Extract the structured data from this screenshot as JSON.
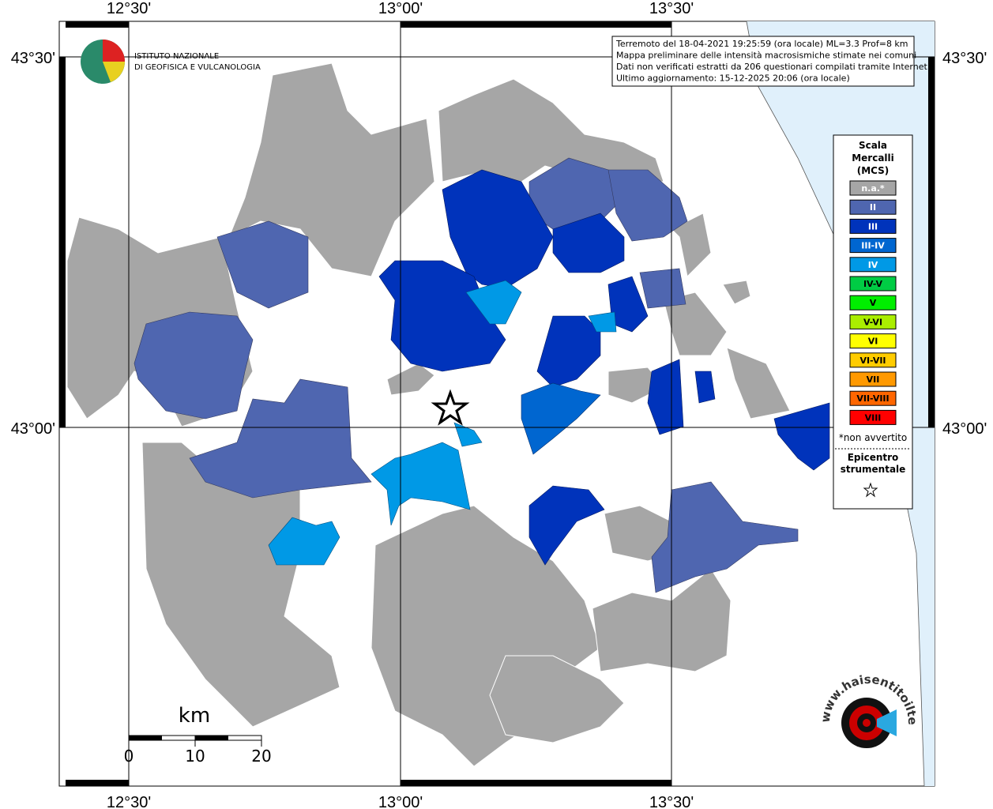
{
  "axis_labels": {
    "top": [
      "12°30'",
      "13°00'",
      "13°30'"
    ],
    "bottom": [
      "12°30'",
      "13°00'",
      "13°30'"
    ],
    "left": [
      "43°30'",
      "43°00'"
    ],
    "right": [
      "43°30'",
      "43°00'"
    ]
  },
  "logo": {
    "lines": [
      "ISTITUTO NAZIONALE",
      "DI GEOFISICA E VULCANOLOGIA"
    ]
  },
  "info": {
    "lines": [
      "Terremoto del 18-04-2021 19:25:59 (ora locale) ML=3.3 Prof=8 km",
      "Mappa preliminare delle intensità macrosismiche stimate nei comuni",
      "Dati non verificati estratti da 206 questionari compilati tramite Internet.",
      "Ultimo aggiornamento: 15-12-2025 20:06 (ora locale)"
    ]
  },
  "legend": {
    "title": [
      "Scala",
      "Mercalli",
      "(MCS)"
    ],
    "items": [
      {
        "label": "n.a.*",
        "color": "#a6a6a6"
      },
      {
        "label": "II",
        "color": "#4f66b0"
      },
      {
        "label": "III",
        "color": "#0033bb"
      },
      {
        "label": "III-IV",
        "color": "#0066d0"
      },
      {
        "label": "IV",
        "color": "#0099e6"
      },
      {
        "label": "IV-V",
        "color": "#00cc44"
      },
      {
        "label": "V",
        "color": "#00ee00"
      },
      {
        "label": "V-VI",
        "color": "#aaee00"
      },
      {
        "label": "VI",
        "color": "#ffff00"
      },
      {
        "label": "VI-VII",
        "color": "#ffcc00"
      },
      {
        "label": "VII",
        "color": "#ff9900"
      },
      {
        "label": "VII-VIII",
        "color": "#ff6600"
      },
      {
        "label": "VIII",
        "color": "#ff0000"
      }
    ],
    "note": "*non avvertito",
    "epicenter": [
      "Epicentro",
      "strumentale"
    ]
  },
  "scale_bar": {
    "unit": "km",
    "ticks": [
      0,
      10,
      20
    ]
  },
  "site_logo": {
    "text": "www.haisentitoilterremoto.it"
  }
}
